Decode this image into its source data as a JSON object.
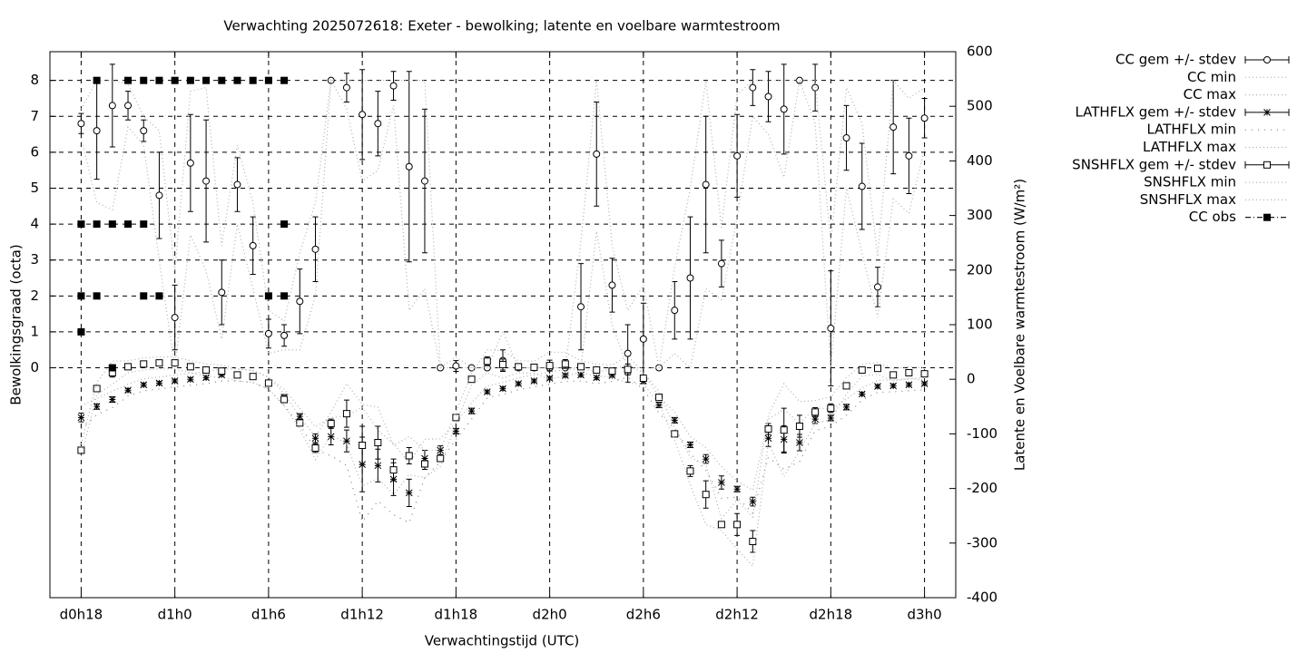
{
  "chart_data": {
    "type": "errorbar",
    "title": "Verwachting 2025072618: Exeter - bewolking; latente en voelbare warmtestroom",
    "xlabel": "Verwachtingstijd (UTC)",
    "ylabel": "Bewolkingsgraad (octa)",
    "y2label": "Latente en Voelbare warmtestroom (W/m²)",
    "x": [
      18,
      19,
      20,
      21,
      22,
      23,
      24,
      25,
      26,
      27,
      28,
      29,
      30,
      31,
      32,
      33,
      34,
      35,
      36,
      37,
      38,
      39,
      40,
      41,
      42,
      43,
      44,
      45,
      46,
      47,
      48,
      49,
      50,
      51,
      52,
      53,
      54,
      55,
      56,
      57,
      58,
      59,
      60,
      61,
      62,
      63,
      64,
      65,
      66,
      67,
      68,
      69,
      70,
      71,
      72
    ],
    "xlim": [
      16,
      74
    ],
    "xticks": [
      {
        "value": 18,
        "label": "d0h18"
      },
      {
        "value": 24,
        "label": "d1h0"
      },
      {
        "value": 30,
        "label": "d1h6"
      },
      {
        "value": 36,
        "label": "d1h12"
      },
      {
        "value": 42,
        "label": "d1h18"
      },
      {
        "value": 48,
        "label": "d2h0"
      },
      {
        "value": 54,
        "label": "d2h6"
      },
      {
        "value": 60,
        "label": "d2h12"
      },
      {
        "value": 66,
        "label": "d2h18"
      },
      {
        "value": 72,
        "label": "d3h0"
      }
    ],
    "ylim": [
      -6.4,
      8.8
    ],
    "yticks": [
      0,
      1,
      2,
      3,
      4,
      5,
      6,
      7,
      8
    ],
    "y2lim": [
      -400,
      600
    ],
    "y2ticks": [
      -400,
      -300,
      -200,
      -100,
      0,
      100,
      200,
      300,
      400,
      500,
      600
    ],
    "grid": true,
    "legend": "outside-right",
    "series": [
      {
        "name": "CC gem +/- stdev",
        "style": "errorbar",
        "marker": "circle",
        "color": "#000000",
        "values": [
          6.8,
          6.6,
          7.3,
          7.3,
          6.6,
          4.8,
          1.4,
          5.7,
          5.2,
          2.1,
          5.1,
          3.4,
          0.95,
          0.9,
          1.85,
          3.3,
          8,
          7.8,
          7.05,
          6.8,
          7.85,
          5.6,
          5.2,
          0,
          0.05,
          0,
          0,
          0.2,
          0,
          0,
          0,
          0,
          1.7,
          5.95,
          2.3,
          0.4,
          0.8,
          0,
          1.6,
          2.5,
          5.1,
          2.9,
          5.9,
          7.8,
          7.55,
          7.2,
          8,
          7.8,
          1.1,
          6.4,
          5.05,
          2.25,
          6.7,
          5.9,
          6.95
        ],
        "errors": [
          0.28,
          1.35,
          1.15,
          0.4,
          0.3,
          1.2,
          0.9,
          1.35,
          1.7,
          0.9,
          0.75,
          0.8,
          0.4,
          0.3,
          0.9,
          0.9,
          0,
          0.4,
          1.25,
          0.9,
          0.4,
          2.65,
          2,
          0,
          0.15,
          0,
          0,
          0.3,
          0,
          0,
          0,
          0,
          1.2,
          1.45,
          0.75,
          0.8,
          1,
          0,
          0.8,
          1.7,
          1.9,
          0.65,
          1.15,
          0.5,
          0.7,
          1.25,
          0,
          0.65,
          1.6,
          0.9,
          1.2,
          0.55,
          1.3,
          1.05,
          0.55
        ]
      },
      {
        "name": "CC min",
        "style": "dotted",
        "color": "#b0b0b0",
        "values": [
          6.4,
          4.6,
          4.4,
          6.7,
          6.2,
          3.0,
          0,
          3.7,
          2.7,
          0.8,
          4.0,
          2.2,
          0.4,
          0.5,
          0.5,
          2.0,
          8,
          7.2,
          5.2,
          5.5,
          7.3,
          1.6,
          2.2,
          0,
          0,
          0,
          0,
          0,
          0,
          0,
          0,
          0,
          0,
          3.8,
          1.2,
          0,
          0,
          0,
          0.4,
          0,
          2.2,
          1.9,
          4.2,
          7.0,
          6.5,
          5.3,
          8,
          6.8,
          0,
          5.0,
          3.2,
          1.4,
          4.7,
          4.3,
          6.1
        ]
      },
      {
        "name": "CC max",
        "style": "dotted",
        "color": "#b0b0b0",
        "values": [
          7.2,
          8,
          8,
          7.9,
          7.0,
          6.6,
          2.7,
          7.7,
          7.8,
          3.4,
          6.2,
          4.6,
          1.6,
          1.3,
          3.2,
          4.6,
          8,
          8,
          8,
          8,
          8,
          8,
          8,
          0,
          0.3,
          0,
          0,
          1.0,
          0,
          0,
          0,
          0,
          3.5,
          8,
          3.4,
          1.6,
          2.3,
          0,
          2.8,
          5.0,
          8,
          3.9,
          7.6,
          8,
          8,
          8,
          8,
          8,
          3.5,
          7.8,
          6.8,
          3.1,
          8,
          7.5,
          7.8
        ]
      },
      {
        "name": "LATHFLX gem +/- stdev",
        "style": "errorbar",
        "marker": "asterisk",
        "color": "#000000",
        "axis": "y2",
        "values": [
          -70,
          -50,
          -37,
          -20,
          -10,
          -7,
          -3,
          0,
          3,
          8,
          8,
          5,
          -7,
          -33,
          -68,
          -108,
          -105,
          -113,
          -156,
          -158,
          -183,
          -208,
          -145,
          -130,
          -95,
          -58,
          -23,
          -17,
          -8,
          -3,
          2,
          7,
          8,
          3,
          7,
          15,
          -3,
          -47,
          -75,
          -120,
          -146,
          -189,
          -201,
          -224,
          -108,
          -110,
          -116,
          -73,
          -71,
          -51,
          -27,
          -13,
          -12,
          -10,
          -8
        ],
        "errors": [
          8,
          5,
          5,
          3,
          3,
          3,
          3,
          3,
          3,
          3,
          3,
          3,
          3,
          5,
          5,
          8,
          15,
          20,
          50,
          30,
          30,
          25,
          15,
          8,
          5,
          5,
          3,
          3,
          3,
          3,
          3,
          3,
          3,
          3,
          3,
          3,
          5,
          5,
          5,
          5,
          8,
          12,
          5,
          8,
          15,
          25,
          15,
          8,
          5,
          5,
          3,
          3,
          3,
          3,
          3
        ]
      },
      {
        "name": "LATHFLX min",
        "style": "loose-dotted",
        "color": "#808080",
        "axis": "y2",
        "values": [
          -91,
          -65,
          -52,
          -31,
          -21,
          -18,
          -14,
          -11,
          -8,
          -3,
          -3,
          -6,
          -18,
          -48,
          -83,
          -129,
          -140,
          -158,
          -261,
          -223,
          -248,
          -263,
          -180,
          -151,
          -110,
          -73,
          -34,
          -28,
          -19,
          -14,
          -9,
          -4,
          -3,
          -8,
          -4,
          4,
          -18,
          -62,
          -90,
          -135,
          -167,
          -218,
          -216,
          -245,
          -143,
          -165,
          -151,
          -94,
          -86,
          -66,
          -38,
          -24,
          -23,
          -21,
          -19
        ]
      },
      {
        "name": "LATHFLX max",
        "style": "dotted",
        "color": "#b0b0b0",
        "axis": "y2",
        "values": [
          -49,
          -35,
          -22,
          -9,
          1,
          4,
          8,
          11,
          14,
          19,
          19,
          16,
          4,
          -18,
          -53,
          -87,
          -70,
          -68,
          -51,
          -93,
          -118,
          -153,
          -110,
          -109,
          -80,
          -43,
          -12,
          -6,
          3,
          8,
          13,
          18,
          19,
          14,
          18,
          26,
          12,
          -32,
          -60,
          -105,
          -125,
          -160,
          -186,
          -203,
          -73,
          -55,
          -81,
          -52,
          -56,
          -36,
          -16,
          -2,
          -1,
          1,
          3
        ]
      },
      {
        "name": "SNSHFLX gem +/- stdev",
        "style": "errorbar",
        "marker": "square",
        "color": "#000000",
        "axis": "y2",
        "values": [
          -130,
          -17,
          12,
          23,
          28,
          30,
          30,
          23,
          17,
          15,
          8,
          5,
          -7,
          -37,
          -80,
          -126,
          -81,
          -63,
          -121,
          -116,
          -166,
          -140,
          -155,
          -145,
          -70,
          0,
          33,
          27,
          23,
          22,
          25,
          28,
          23,
          17,
          15,
          18,
          2,
          -33,
          -100,
          -168,
          -211,
          -266,
          -266,
          -297,
          -91,
          -93,
          -86,
          -60,
          -53,
          -12,
          17,
          20,
          8,
          12,
          10
        ],
        "errors": [
          3,
          3,
          8,
          3,
          3,
          3,
          3,
          3,
          3,
          3,
          3,
          3,
          3,
          3,
          3,
          8,
          8,
          25,
          35,
          30,
          20,
          15,
          10,
          5,
          3,
          3,
          8,
          10,
          3,
          3,
          10,
          8,
          3,
          3,
          3,
          10,
          3,
          3,
          3,
          10,
          25,
          3,
          20,
          20,
          10,
          40,
          20,
          8,
          8,
          5,
          3,
          3,
          3,
          3,
          3
        ]
      },
      {
        "name": "SNSHFLX min",
        "style": "dotted",
        "color": "#b0b0b0",
        "axis": "y2",
        "values": [
          -141,
          -28,
          -9,
          12,
          17,
          19,
          19,
          12,
          6,
          4,
          -3,
          -6,
          -18,
          -48,
          -91,
          -147,
          -102,
          -118,
          -196,
          -181,
          -211,
          -175,
          -180,
          -160,
          -81,
          -11,
          12,
          2,
          12,
          11,
          0,
          7,
          12,
          6,
          4,
          -7,
          -9,
          -44,
          -111,
          -193,
          -266,
          -277,
          -311,
          -342,
          -116,
          -178,
          -131,
          -81,
          -74,
          -27,
          6,
          9,
          -3,
          1,
          -1
        ]
      },
      {
        "name": "SNSHFLX max",
        "style": "dotted",
        "color": "#b0b0b0",
        "axis": "y2",
        "values": [
          -119,
          -6,
          33,
          34,
          39,
          41,
          41,
          34,
          28,
          26,
          19,
          16,
          4,
          -26,
          -69,
          -105,
          -60,
          -8,
          -46,
          -51,
          -121,
          -105,
          -130,
          -130,
          -59,
          11,
          54,
          52,
          34,
          33,
          50,
          49,
          34,
          28,
          26,
          43,
          13,
          -22,
          -89,
          -143,
          -156,
          -255,
          -221,
          -252,
          -66,
          -8,
          -41,
          -39,
          -32,
          3,
          28,
          31,
          19,
          23,
          21
        ]
      },
      {
        "name": "CC obs",
        "style": "dash-dot",
        "marker": "filled-square",
        "color": "#000000",
        "x": [
          18,
          18,
          18,
          19,
          19,
          19,
          20,
          20,
          21,
          21,
          22,
          22,
          22,
          23,
          23,
          24,
          25,
          26,
          27,
          28,
          29,
          30,
          30,
          31,
          31,
          31
        ],
        "values": [
          1,
          2,
          4,
          8,
          4,
          2,
          4,
          0,
          8,
          4,
          8,
          4,
          2,
          8,
          2,
          8,
          8,
          8,
          8,
          8,
          8,
          8,
          2,
          8,
          4,
          2
        ]
      }
    ]
  }
}
